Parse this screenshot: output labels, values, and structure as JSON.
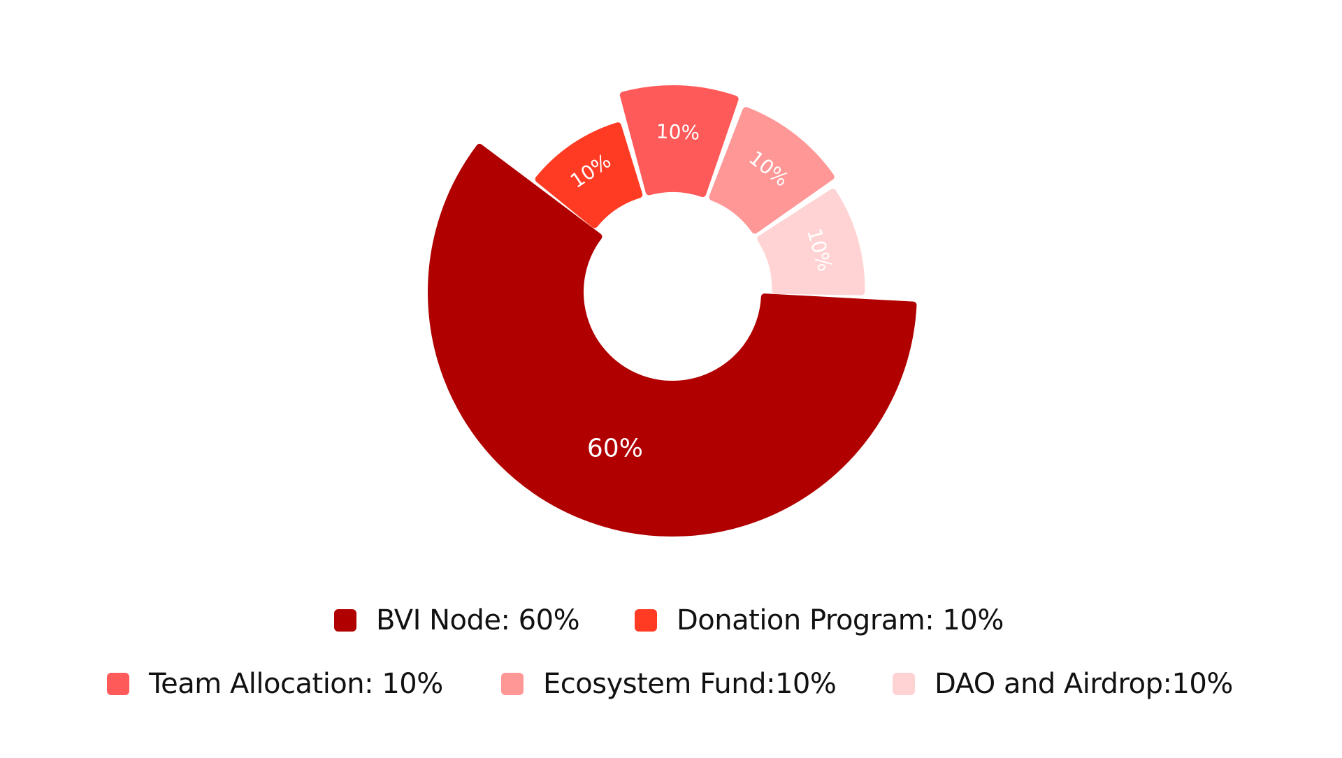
{
  "chart_data": {
    "type": "pie",
    "title": "",
    "categories": [
      "BVI Node",
      "Donation Program",
      "Team Allocation",
      "Ecosystem Fund",
      "DAO and Airdrop"
    ],
    "values": [
      60,
      10,
      10,
      10,
      10
    ],
    "slice_labels": [
      "60%",
      "10%",
      "10%",
      "10%",
      "10%"
    ],
    "colors": [
      "#b00000",
      "#ff3b24",
      "#ff5a5a",
      "#ff9797",
      "#ffd3d3"
    ],
    "legend": {
      "placement": "bottom",
      "items": [
        {
          "label": "BVI Node: 60%",
          "color": "#b00000"
        },
        {
          "label": "Donation Program: 10%",
          "color": "#ff3b24"
        },
        {
          "label": "Team Allocation: 10%",
          "color": "#ff5a5a"
        },
        {
          "label": "Ecosystem Fund:10%",
          "color": "#ff9797"
        },
        {
          "label": "DAO and Airdrop:10%",
          "color": "#ffd3d3"
        }
      ]
    }
  }
}
